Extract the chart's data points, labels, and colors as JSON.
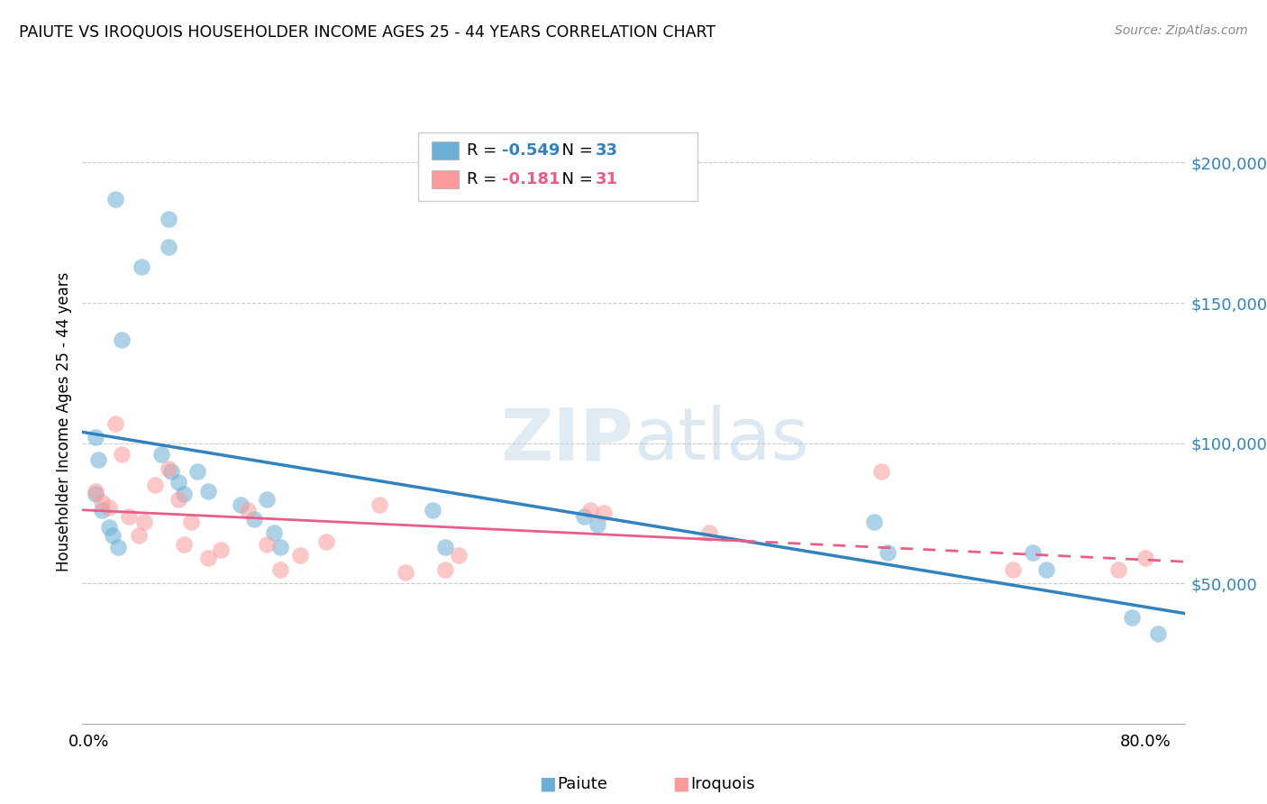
{
  "title": "PAIUTE VS IROQUOIS HOUSEHOLDER INCOME AGES 25 - 44 YEARS CORRELATION CHART",
  "source": "Source: ZipAtlas.com",
  "ylabel": "Householder Income Ages 25 - 44 years",
  "ytick_labels": [
    "$50,000",
    "$100,000",
    "$150,000",
    "$200,000"
  ],
  "ytick_values": [
    50000,
    100000,
    150000,
    200000
  ],
  "ymin": 0,
  "ymax": 215000,
  "xmin": -0.005,
  "xmax": 0.83,
  "paiute_R": -0.549,
  "paiute_N": 33,
  "iroquois_R": -0.181,
  "iroquois_N": 31,
  "paiute_color": "#6baed6",
  "iroquois_color": "#fb9a9a",
  "paiute_line_color": "#3182bd",
  "iroquois_line_color": "#e85d8a",
  "paiute_x": [
    0.02,
    0.04,
    0.06,
    0.06,
    0.025,
    0.005,
    0.007,
    0.005,
    0.01,
    0.015,
    0.018,
    0.022,
    0.055,
    0.062,
    0.068,
    0.072,
    0.082,
    0.09,
    0.115,
    0.125,
    0.135,
    0.14,
    0.145,
    0.26,
    0.27,
    0.375,
    0.385,
    0.595,
    0.605,
    0.715,
    0.725,
    0.79,
    0.81
  ],
  "paiute_y": [
    187000,
    163000,
    170000,
    180000,
    137000,
    102000,
    94000,
    82000,
    76000,
    70000,
    67000,
    63000,
    96000,
    90000,
    86000,
    82000,
    90000,
    83000,
    78000,
    73000,
    80000,
    68000,
    63000,
    76000,
    63000,
    74000,
    71000,
    72000,
    61000,
    61000,
    55000,
    38000,
    32000
  ],
  "iroquois_x": [
    0.005,
    0.01,
    0.015,
    0.02,
    0.025,
    0.03,
    0.038,
    0.042,
    0.05,
    0.06,
    0.068,
    0.072,
    0.077,
    0.09,
    0.1,
    0.12,
    0.135,
    0.145,
    0.16,
    0.18,
    0.22,
    0.24,
    0.27,
    0.28,
    0.38,
    0.39,
    0.47,
    0.6,
    0.7,
    0.78,
    0.8
  ],
  "iroquois_y": [
    83000,
    79000,
    77000,
    107000,
    96000,
    74000,
    67000,
    72000,
    85000,
    91000,
    80000,
    64000,
    72000,
    59000,
    62000,
    76000,
    64000,
    55000,
    60000,
    65000,
    78000,
    54000,
    55000,
    60000,
    76000,
    75000,
    68000,
    90000,
    55000,
    55000,
    59000
  ]
}
